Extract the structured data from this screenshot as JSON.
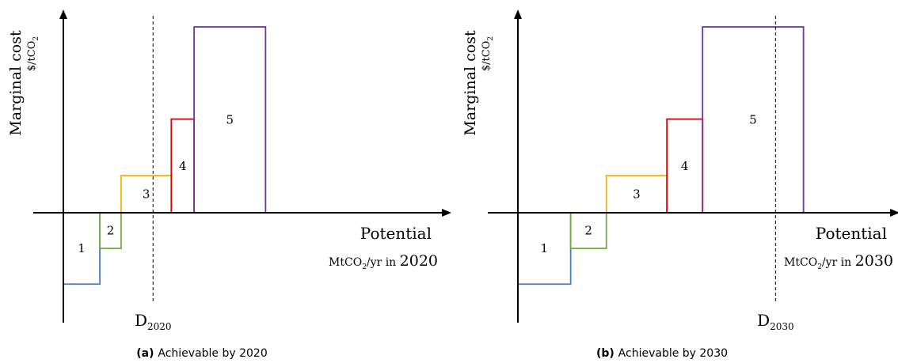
{
  "chart_data": [
    {
      "type": "bar",
      "caption_label": "(a)",
      "caption_text": "Achievable by 2020",
      "ylabel": "Marginal cost",
      "yunit": "$/tCO",
      "yunit_sub": "2",
      "xlabel": "Potential",
      "xunit_pre": "MtCO",
      "xunit_sub": "2",
      "xunit_post": "/yr in",
      "xunit_year": "2020",
      "demand_label": "D",
      "demand_sub": "2020",
      "demand_x": 5.9,
      "bars": [
        {
          "label": "1",
          "x0": 0.0,
          "x1": 2.4,
          "cost": -4.8,
          "color": "#4a7ebb"
        },
        {
          "label": "2",
          "x0": 2.4,
          "x1": 3.8,
          "cost": -2.4,
          "color": "#77a84a"
        },
        {
          "label": "3",
          "x0": 3.8,
          "x1": 7.1,
          "cost": 2.5,
          "color": "#f5b400"
        },
        {
          "label": "4",
          "x0": 7.1,
          "x1": 8.6,
          "cost": 6.3,
          "color": "#e00000"
        },
        {
          "label": "5",
          "x0": 8.6,
          "x1": 13.3,
          "cost": 12.5,
          "color": "#7030a0"
        }
      ]
    },
    {
      "type": "bar",
      "caption_label": "(b)",
      "caption_text": "Achievable by 2030",
      "ylabel": "Marginal cost",
      "yunit": "$/tCO",
      "yunit_sub": "2",
      "xlabel": "Potential",
      "xunit_pre": "MtCO",
      "xunit_sub": "2",
      "xunit_post": "/yr in",
      "xunit_year": "2030",
      "demand_label": "D",
      "demand_sub": "2030",
      "demand_x": 16.6,
      "bars": [
        {
          "label": "1",
          "x0": 0.0,
          "x1": 3.4,
          "cost": -4.8,
          "color": "#4a7ebb"
        },
        {
          "label": "2",
          "x0": 3.4,
          "x1": 5.7,
          "cost": -2.4,
          "color": "#77a84a"
        },
        {
          "label": "3",
          "x0": 5.7,
          "x1": 9.6,
          "cost": 2.5,
          "color": "#f5b400"
        },
        {
          "label": "4",
          "x0": 9.6,
          "x1": 11.9,
          "cost": 6.3,
          "color": "#e00000"
        },
        {
          "label": "5",
          "x0": 11.9,
          "x1": 18.4,
          "cost": 12.5,
          "color": "#7030a0"
        }
      ]
    }
  ]
}
